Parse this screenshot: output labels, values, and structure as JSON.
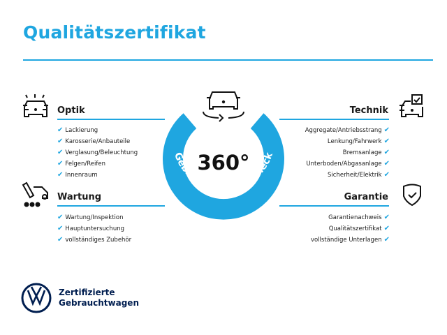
{
  "title": "Qualitätszertifikat",
  "accent_color": "#1fa6e0",
  "center": {
    "big": "360°",
    "arc_text": "Gebrauchtwagen-Check",
    "icon": "car-360-rotate-icon"
  },
  "sections": {
    "optik": {
      "title": "Optik",
      "icon": "car-lights-icon",
      "items": [
        "Lackierung",
        "Karosserie/Anbauteile",
        "Verglasung/Beleuchtung",
        "Felgen/Reifen",
        "Innenraum"
      ]
    },
    "wartung": {
      "title": "Wartung",
      "icon": "car-service-icon",
      "items": [
        "Wartung/Inspektion",
        "Hauptuntersuchung",
        "vollständiges Zubehör"
      ]
    },
    "technik": {
      "title": "Technik",
      "icon": "car-checkbox-icon",
      "items": [
        "Aggregate/Antriebsstrang",
        "Lenkung/Fahrwerk",
        "Bremsanlage",
        "Unterboden/Abgasanlage",
        "Sicherheit/Elektrik"
      ]
    },
    "garantie": {
      "title": "Garantie",
      "icon": "shield-check-icon",
      "items": [
        "Garantienachweis",
        "Qualitätszertifikat",
        "vollständige Unterlagen"
      ]
    }
  },
  "check_glyph": "✔",
  "logo": {
    "line1": "Zertifizierte",
    "line2": "Gebrauchtwagen",
    "brand_color": "#001e50"
  }
}
